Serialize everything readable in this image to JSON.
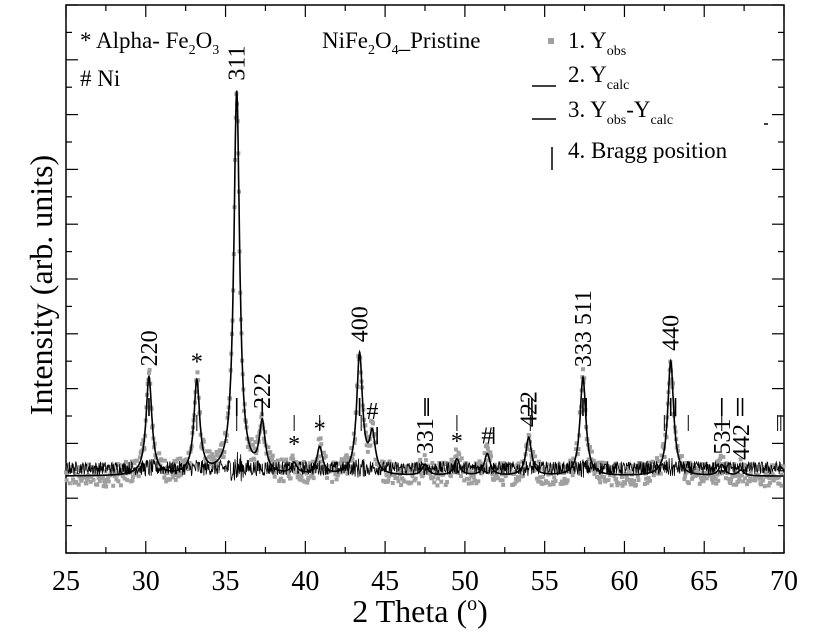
{
  "chart_data": {
    "type": "scatter",
    "xlabel": "2 Theta (°)",
    "xlabel_main": "2 Theta (",
    "xlabel_sup": "o",
    "xlabel_close": ")",
    "ylabel": "Intensity (arb. units)",
    "xlim": [
      25,
      70
    ],
    "ylim": [
      0,
      100
    ],
    "x_ticks": [
      25,
      30,
      35,
      40,
      45,
      50,
      55,
      60,
      65,
      70
    ],
    "phase_notes": [
      {
        "symbol": "*",
        "text": "Alpha- Fe2O3",
        "main": "Alpha- Fe",
        "sub1": "2",
        "mid": "O",
        "sub2": "3"
      },
      {
        "symbol": "#",
        "text": "Ni"
      }
    ],
    "sample_label": {
      "text": "NiFe2O4_Pristine",
      "main": "NiFe",
      "sub1": "2",
      "mid": "O",
      "sub2": "4",
      "tail": "_Pristine"
    },
    "legend": [
      {
        "index": "1.",
        "name": "Yobs",
        "main": "Y",
        "sub": "obs",
        "marker": "square",
        "color": "#a0a0a0"
      },
      {
        "index": "2.",
        "name": "Ycalc",
        "main": "Y",
        "sub": "calc",
        "marker": "line",
        "color": "#000000"
      },
      {
        "index": "3.",
        "name": "Yobs-Ycalc",
        "main": "Y",
        "sub": "obs",
        "mid": "-Y",
        "sub2": "calc",
        "marker": "line",
        "color": "#000000"
      },
      {
        "index": "4.",
        "name": "Bragg position",
        "marker": "tick",
        "color": "#000000"
      }
    ],
    "peaks": [
      {
        "x": 30.2,
        "height": 18,
        "label": "220"
      },
      {
        "x": 33.2,
        "height": 17,
        "label": "*"
      },
      {
        "x": 35.7,
        "height": 70,
        "label": "311"
      },
      {
        "x": 37.3,
        "height": 9,
        "label": "222"
      },
      {
        "x": 39.3,
        "height": 2,
        "label": "*"
      },
      {
        "x": 40.9,
        "height": 5,
        "label": "*"
      },
      {
        "x": 43.4,
        "height": 22,
        "label": "400"
      },
      {
        "x": 44.2,
        "height": 7,
        "label": "#"
      },
      {
        "x": 47.5,
        "height": 2,
        "label": "331"
      },
      {
        "x": 49.5,
        "height": 3,
        "label": "*"
      },
      {
        "x": 51.4,
        "height": 4,
        "label": "#"
      },
      {
        "x": 54.0,
        "height": 7,
        "label": "422"
      },
      {
        "x": 57.4,
        "height": 18,
        "label": "333  511"
      },
      {
        "x": 62.9,
        "height": 21,
        "label": "440"
      },
      {
        "x": 66.1,
        "height": 2,
        "label": "531"
      },
      {
        "x": 67.3,
        "height": 1,
        "label": "442"
      }
    ],
    "bragg_positions": {
      "spinel": [
        30.2,
        35.7,
        37.3,
        43.4,
        47.5,
        47.7,
        54.0,
        54.2,
        57.4,
        57.6,
        62.9,
        63.2,
        66.1,
        67.1,
        67.4
      ],
      "hematite": [
        24.1,
        33.2,
        35.7,
        39.3,
        40.9,
        43.5,
        49.5,
        54.1,
        57.6,
        62.5,
        64.0,
        66.1,
        69.6,
        69.8
      ],
      "nickel": [
        44.5,
        51.8
      ]
    },
    "background_level": 14,
    "difference_offset": -24,
    "marker_colors": {
      "observed": "#a0a0a0",
      "calculated": "#000000",
      "difference": "#000000"
    }
  }
}
